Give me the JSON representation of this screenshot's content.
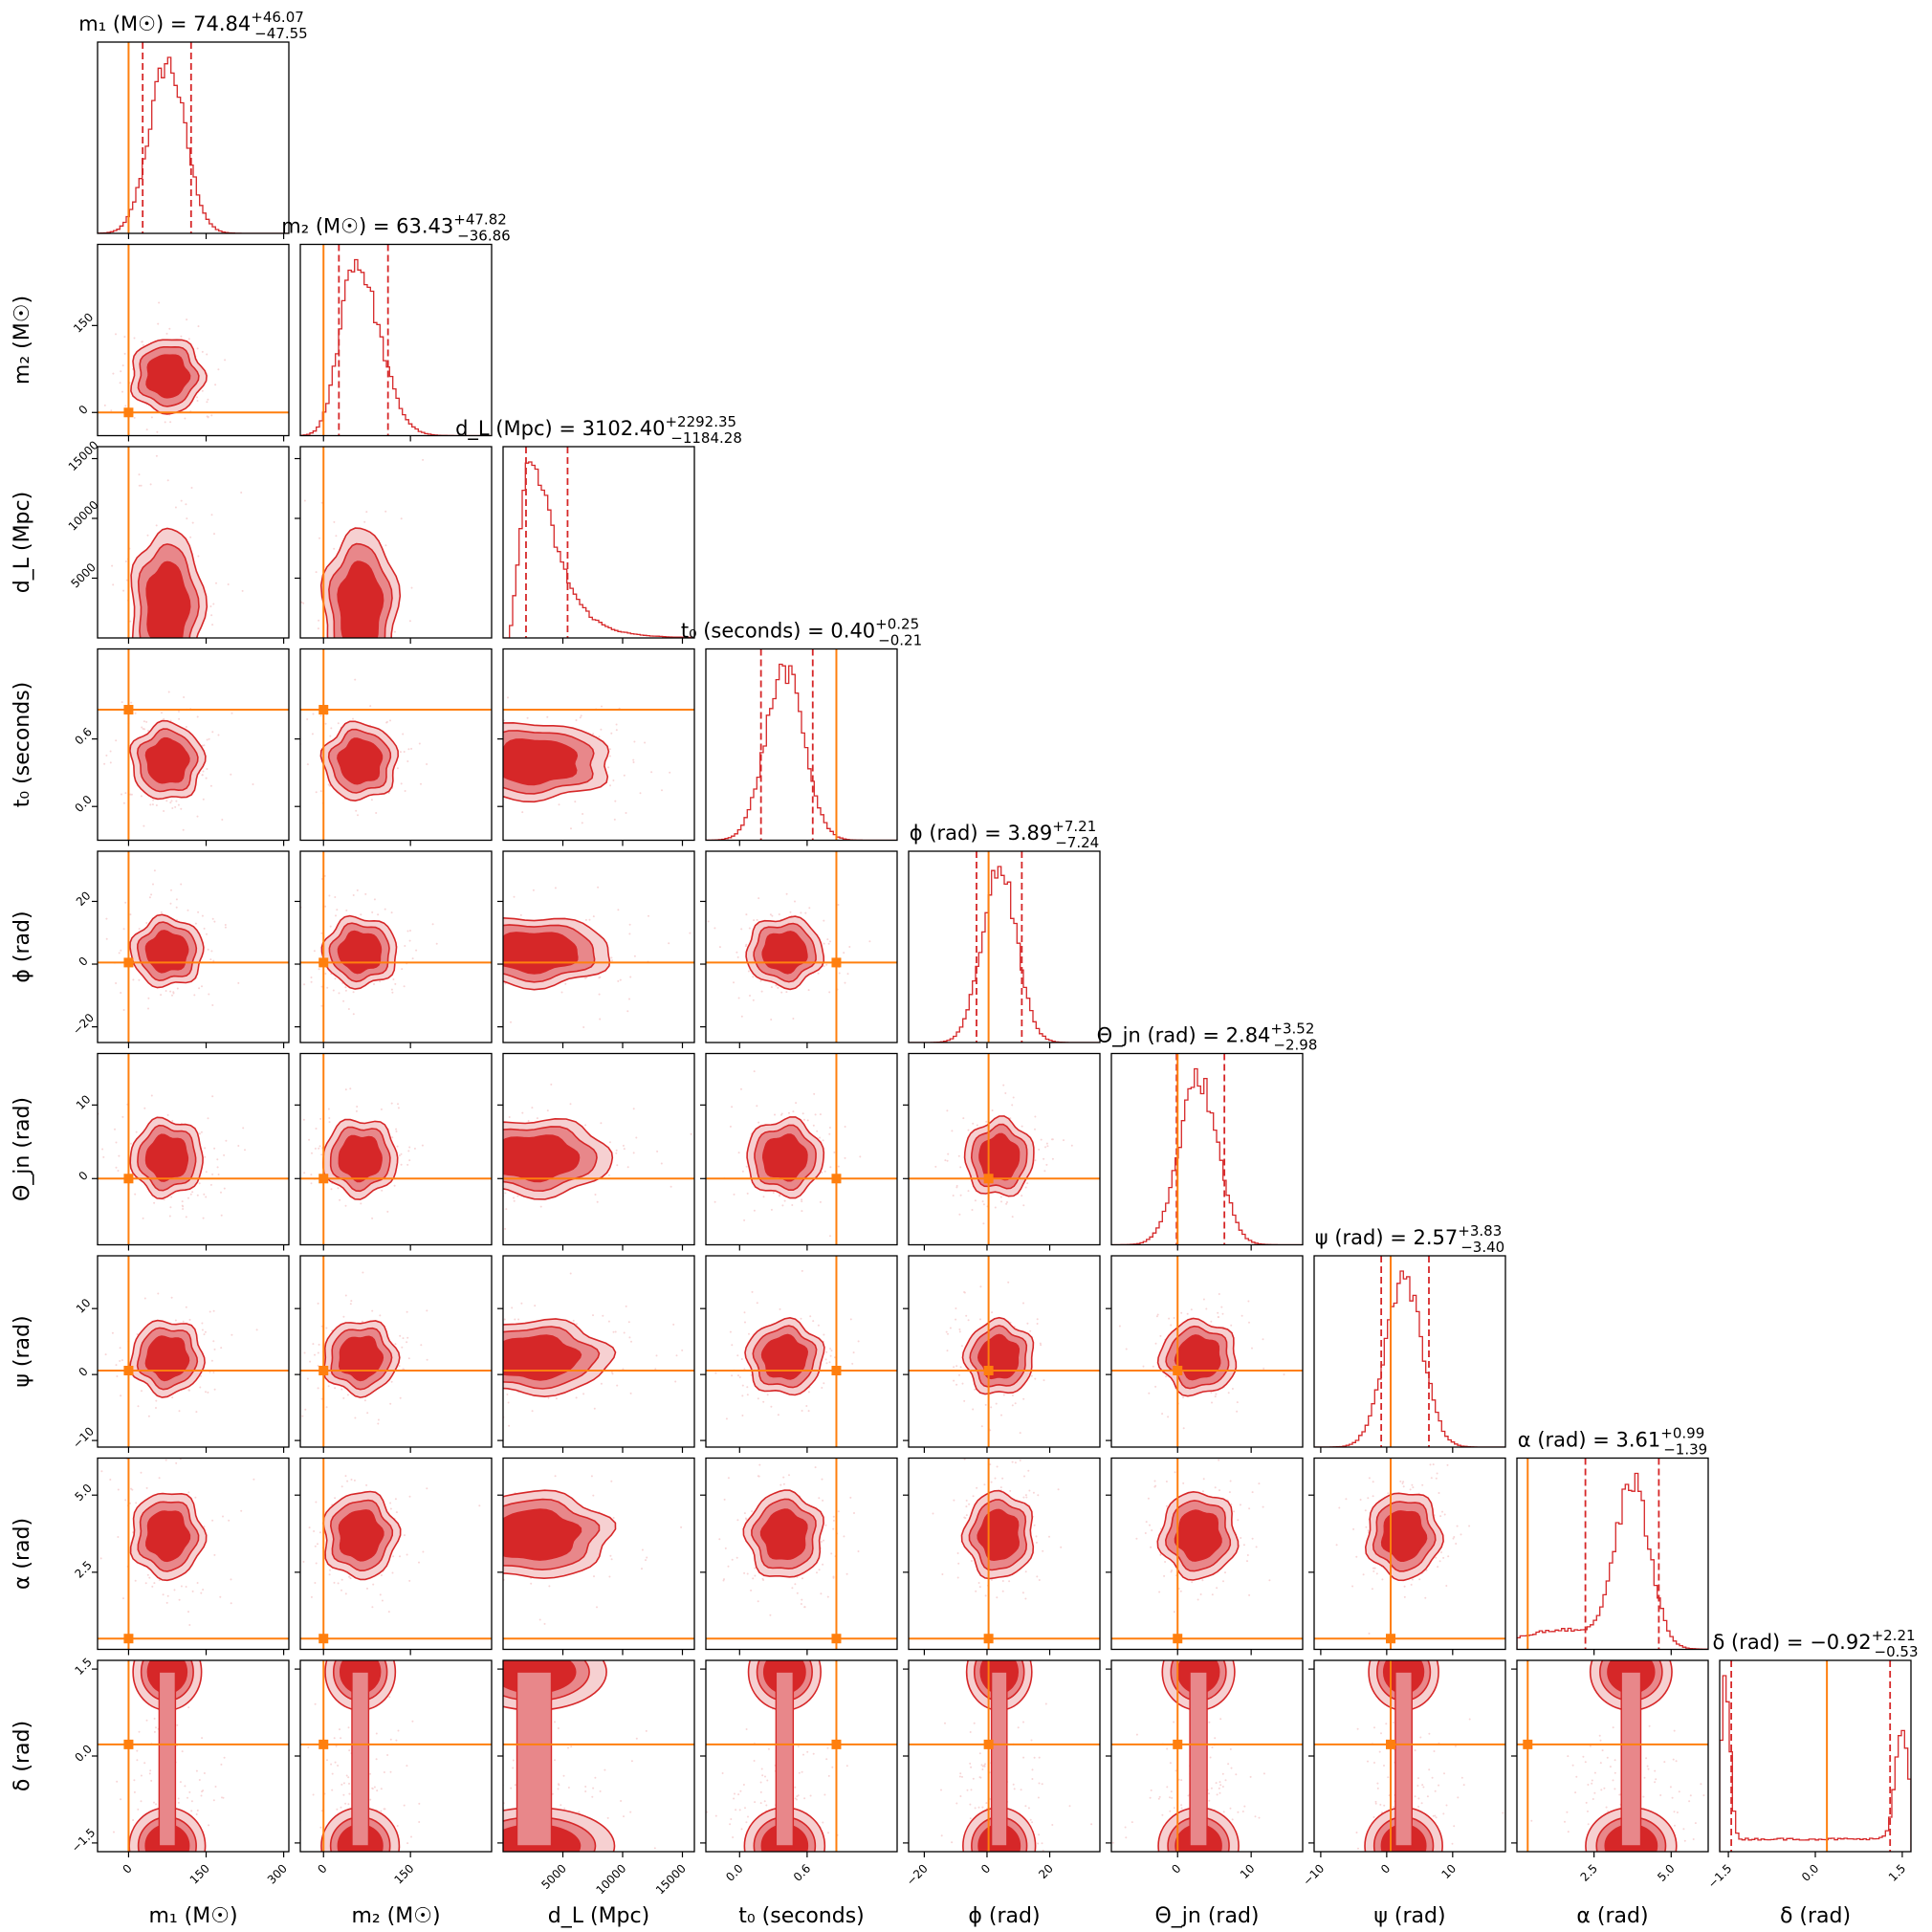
{
  "chart_data": {
    "type": "corner",
    "colors": {
      "posterior": "#d62728",
      "contour_inner": "#d62728",
      "contour_mid": "#e8878a",
      "contour_outer": "#f6d0d1",
      "injection": "#ff7f0e",
      "frame": "#000000"
    },
    "parameters": [
      {
        "id": "m1",
        "axis_label": "m₁ (M☉)",
        "title_name": "m₁ (M☉)",
        "title_value": "74.84",
        "title_plus": "+46.07",
        "title_minus": "−47.55",
        "range": [
          -60,
          310
        ],
        "ticks": [
          0,
          150,
          300
        ],
        "tick_labels": [
          "0",
          "150",
          "300"
        ],
        "median": 74.84,
        "q_low": 27.29,
        "q_high": 120.91,
        "truth": 0,
        "sigma": 35,
        "skew": "none"
      },
      {
        "id": "m2",
        "axis_label": "m₂ (M☉)",
        "title_name": "m₂ (M☉)",
        "title_value": "63.43",
        "title_plus": "+47.82",
        "title_minus": "−36.86",
        "range": [
          -40,
          290
        ],
        "ticks": [
          0,
          150
        ],
        "tick_labels": [
          "0",
          "150"
        ],
        "median": 63.43,
        "q_low": 26.57,
        "q_high": 111.25,
        "truth": 0,
        "sigma": 32,
        "skew": "right"
      },
      {
        "id": "dl",
        "axis_label": "d_L (Mpc)",
        "title_name": "d_L (Mpc)",
        "title_value": "3102.40",
        "title_plus": "+2292.35",
        "title_minus": "−1184.28",
        "range": [
          0,
          16000
        ],
        "ticks": [
          5000,
          10000,
          15000
        ],
        "tick_labels": [
          "5000",
          "10000",
          "15000"
        ],
        "median": 3102.4,
        "q_low": 1918.12,
        "q_high": 5394.75,
        "truth": null,
        "sigma": 1600,
        "skew": "strong-right"
      },
      {
        "id": "t0",
        "axis_label": "t₀ (seconds)",
        "title_name": "t₀ (seconds)",
        "title_value": "0.40",
        "title_plus": "+0.25",
        "title_minus": "−0.21",
        "range": [
          -0.3,
          1.4
        ],
        "ticks": [
          0.0,
          0.6
        ],
        "tick_labels": [
          "0.0",
          "0.6"
        ],
        "median": 0.4,
        "q_low": 0.19,
        "q_high": 0.65,
        "truth": 0.86,
        "sigma": 0.17,
        "skew": "none"
      },
      {
        "id": "phi",
        "axis_label": "ϕ (rad)",
        "title_name": "ϕ (rad)",
        "title_value": "3.89",
        "title_plus": "+7.21",
        "title_minus": "−7.24",
        "range": [
          -25,
          36
        ],
        "ticks": [
          -20,
          0,
          20
        ],
        "tick_labels": [
          "−20",
          "0",
          "20"
        ],
        "median": 3.89,
        "q_low": -3.35,
        "q_high": 11.1,
        "truth": 0.5,
        "sigma": 5.5,
        "skew": "none"
      },
      {
        "id": "theta",
        "axis_label": "Θ_jn (rad)",
        "title_name": "Θ_jn (rad)",
        "title_value": "2.84",
        "title_plus": "+3.52",
        "title_minus": "−2.98",
        "range": [
          -9,
          17
        ],
        "ticks": [
          0,
          10
        ],
        "tick_labels": [
          "0",
          "10"
        ],
        "median": 2.84,
        "q_low": -0.14,
        "q_high": 6.36,
        "truth": 0,
        "sigma": 2.6,
        "skew": "none"
      },
      {
        "id": "psi",
        "axis_label": "ψ (rad)",
        "title_name": "ψ (rad)",
        "title_value": "2.57",
        "title_plus": "+3.83",
        "title_minus": "−3.40",
        "range": [
          -11,
          18
        ],
        "ticks": [
          -10,
          0,
          10
        ],
        "tick_labels": [
          "−10",
          "0",
          "10"
        ],
        "median": 2.57,
        "q_low": -0.83,
        "q_high": 6.4,
        "truth": 0.6,
        "sigma": 2.8,
        "skew": "none"
      },
      {
        "id": "alpha",
        "axis_label": "α (rad)",
        "title_name": "α (rad)",
        "title_value": "3.61",
        "title_plus": "+0.99",
        "title_minus": "−1.39",
        "range": [
          0,
          6.2
        ],
        "ticks": [
          2.5,
          5.0
        ],
        "tick_labels": [
          "2.5",
          "5.0"
        ],
        "median": 3.61,
        "q_low": 2.22,
        "q_high": 4.6,
        "truth": 0.35,
        "sigma": 0.7,
        "skew": "left"
      },
      {
        "id": "delta",
        "axis_label": "δ (rad)",
        "title_name": "δ (rad)",
        "title_value": "−0.92",
        "title_plus": "+2.21",
        "title_minus": "−0.53",
        "range": [
          -1.65,
          1.65
        ],
        "ticks": [
          -1.5,
          0.0,
          1.5
        ],
        "tick_labels": [
          "−1.5",
          "0.0",
          "1.5"
        ],
        "median": -0.92,
        "q_low": -1.45,
        "q_high": 1.29,
        "truth": 0.2,
        "sigma": 0.5,
        "skew": "bimodal"
      }
    ],
    "levels": [
      "inner",
      "mid",
      "outer"
    ],
    "grid": false
  }
}
